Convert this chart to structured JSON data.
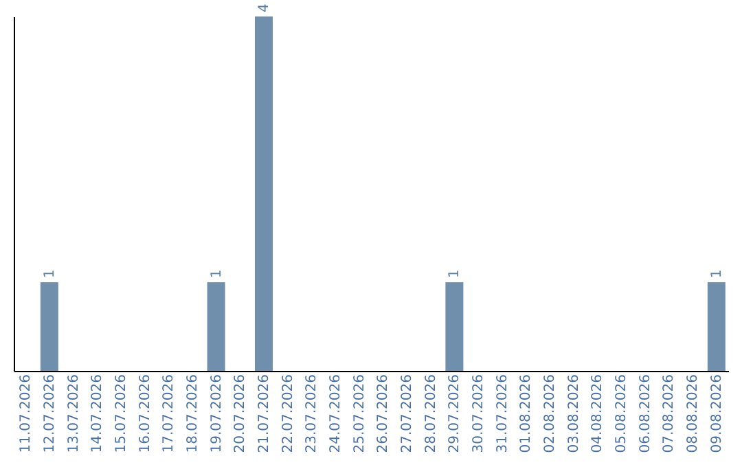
{
  "chart_data": {
    "type": "bar",
    "categories": [
      "11.07.2026",
      "12.07.2026",
      "13.07.2026",
      "14.07.2026",
      "15.07.2026",
      "16.07.2026",
      "17.07.2026",
      "18.07.2026",
      "19.07.2026",
      "20.07.2026",
      "21.07.2026",
      "22.07.2026",
      "23.07.2026",
      "24.07.2026",
      "25.07.2026",
      "26.07.2026",
      "27.07.2026",
      "28.07.2026",
      "29.07.2026",
      "30.07.2026",
      "31.07.2026",
      "01.08.2026",
      "02.08.2026",
      "03.08.2026",
      "04.08.2026",
      "05.08.2026",
      "06.08.2026",
      "07.08.2026",
      "08.08.2026",
      "09.08.2026"
    ],
    "values": [
      0,
      1,
      0,
      0,
      0,
      0,
      0,
      0,
      1,
      0,
      4,
      0,
      0,
      0,
      0,
      0,
      0,
      0,
      1,
      0,
      0,
      0,
      0,
      0,
      0,
      0,
      0,
      0,
      0,
      1
    ],
    "value_labels": [
      null,
      "1",
      null,
      null,
      null,
      null,
      null,
      null,
      "1",
      null,
      "4",
      null,
      null,
      null,
      null,
      null,
      null,
      null,
      "1",
      null,
      null,
      null,
      null,
      null,
      null,
      null,
      null,
      null,
      null,
      "1"
    ],
    "color": "#6f8fad",
    "grid": false
  }
}
